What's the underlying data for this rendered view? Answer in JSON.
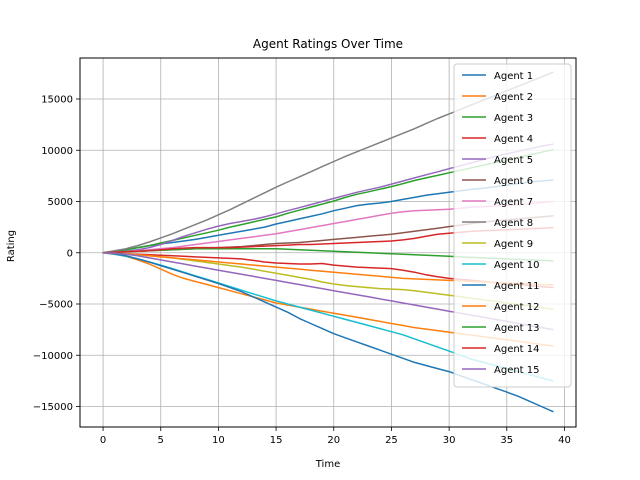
{
  "chart_data": {
    "type": "line",
    "title": "Agent Ratings Over Time",
    "xlabel": "Time",
    "ylabel": "Rating",
    "xlim": [
      -2,
      41
    ],
    "ylim": [
      -17000,
      19000
    ],
    "x_ticks": [
      0,
      5,
      10,
      15,
      20,
      25,
      30,
      35,
      40
    ],
    "y_ticks": [
      -15000,
      -10000,
      -5000,
      0,
      5000,
      10000,
      15000
    ],
    "x_tick_labels": [
      "0",
      "5",
      "10",
      "15",
      "20",
      "25",
      "30",
      "35",
      "40"
    ],
    "y_tick_labels": [
      "−15000",
      "−10000",
      "−5000",
      "0",
      "5000",
      "10000",
      "15000"
    ],
    "grid": true,
    "legend_position": "upper right",
    "x": [
      0,
      1,
      2,
      3,
      4,
      5,
      6,
      7,
      8,
      9,
      10,
      11,
      12,
      13,
      14,
      15,
      16,
      17,
      18,
      19,
      20,
      21,
      22,
      23,
      24,
      25,
      26,
      27,
      28,
      29,
      30,
      31,
      32,
      33,
      34,
      35,
      36,
      37,
      38,
      39
    ],
    "series": [
      {
        "name": "Agent 1",
        "color": "#1f77b4",
        "values": [
          0,
          150,
          300,
          500,
          700,
          850,
          1000,
          1150,
          1300,
          1500,
          1700,
          1900,
          2100,
          2300,
          2500,
          2800,
          3050,
          3300,
          3550,
          3800,
          4100,
          4350,
          4600,
          4750,
          4850,
          5000,
          5200,
          5400,
          5600,
          5750,
          5900,
          6050,
          6200,
          6300,
          6450,
          6600,
          6750,
          6900,
          7000,
          7100
        ]
      },
      {
        "name": "Agent 2",
        "color": "#ff7f0e",
        "values": [
          0,
          -150,
          -350,
          -700,
          -1100,
          -1600,
          -2100,
          -2500,
          -2800,
          -3100,
          -3400,
          -3700,
          -4000,
          -4300,
          -4600,
          -4900,
          -5100,
          -5300,
          -5500,
          -5700,
          -5900,
          -6100,
          -6300,
          -6500,
          -6700,
          -6900,
          -7100,
          -7300,
          -7450,
          -7600,
          -7750,
          -7900,
          -8050,
          -8200,
          -8350,
          -8500,
          -8650,
          -8800,
          -8950,
          -9100
        ]
      },
      {
        "name": "Agent 3",
        "color": "#2ca02c",
        "values": [
          0,
          150,
          300,
          500,
          700,
          950,
          1200,
          1450,
          1700,
          1950,
          2200,
          2500,
          2750,
          3000,
          3250,
          3500,
          3850,
          4150,
          4450,
          4750,
          5050,
          5400,
          5700,
          5950,
          6200,
          6450,
          6750,
          7050,
          7300,
          7550,
          7800,
          8050,
          8300,
          8550,
          8800,
          9050,
          9300,
          9550,
          9800,
          10050
        ]
      },
      {
        "name": "Agent 4",
        "color": "#d62728",
        "values": [
          0,
          -50,
          -100,
          -150,
          -200,
          -250,
          -300,
          -350,
          -400,
          -450,
          -500,
          -550,
          -600,
          -750,
          -900,
          -1000,
          -1050,
          -1100,
          -1100,
          -1050,
          -1200,
          -1300,
          -1400,
          -1450,
          -1500,
          -1550,
          -1700,
          -1900,
          -2150,
          -2350,
          -2500,
          -2600,
          -2700,
          -2800,
          -2900,
          -3000,
          -3100,
          -3200,
          -3300,
          -3400
        ]
      },
      {
        "name": "Agent 5",
        "color": "#9467bd",
        "values": [
          0,
          50,
          150,
          300,
          500,
          800,
          1200,
          1600,
          1950,
          2300,
          2600,
          2850,
          3050,
          3250,
          3500,
          3800,
          4100,
          4400,
          4700,
          5000,
          5300,
          5600,
          5900,
          6150,
          6400,
          6700,
          7000,
          7300,
          7600,
          7900,
          8200,
          8500,
          8800,
          9100,
          9400,
          9650,
          9900,
          10150,
          10400,
          10600
        ]
      },
      {
        "name": "Agent 6",
        "color": "#8c564b",
        "values": [
          0,
          50,
          100,
          150,
          200,
          250,
          300,
          350,
          400,
          450,
          500,
          550,
          600,
          700,
          800,
          900,
          950,
          1000,
          1100,
          1200,
          1300,
          1400,
          1500,
          1600,
          1700,
          1800,
          1950,
          2100,
          2250,
          2400,
          2550,
          2700,
          2850,
          3000,
          3100,
          3200,
          3300,
          3400,
          3500,
          3600
        ]
      },
      {
        "name": "Agent 7",
        "color": "#e377c2",
        "values": [
          0,
          50,
          100,
          200,
          300,
          400,
          500,
          650,
          800,
          950,
          1100,
          1250,
          1400,
          1550,
          1700,
          1850,
          2050,
          2250,
          2450,
          2650,
          2850,
          3050,
          3250,
          3450,
          3650,
          3850,
          4000,
          4100,
          4150,
          4200,
          4250,
          4350,
          4450,
          4500,
          4550,
          4600,
          4700,
          4800,
          4900,
          5000
        ]
      },
      {
        "name": "Agent 8",
        "color": "#7f7f7f",
        "values": [
          0,
          200,
          400,
          700,
          1050,
          1450,
          1850,
          2300,
          2750,
          3200,
          3700,
          4200,
          4750,
          5300,
          5850,
          6400,
          6900,
          7400,
          7900,
          8400,
          8900,
          9400,
          9850,
          10300,
          10750,
          11200,
          11650,
          12100,
          12600,
          13100,
          13550,
          14000,
          14450,
          14900,
          15350,
          15800,
          16250,
          16700,
          17150,
          17600
        ]
      },
      {
        "name": "Agent 9",
        "color": "#bcbd22",
        "values": [
          0,
          -50,
          -100,
          -200,
          -300,
          -400,
          -500,
          -650,
          -800,
          -950,
          -1100,
          -1250,
          -1400,
          -1600,
          -1800,
          -2000,
          -2200,
          -2400,
          -2600,
          -2850,
          -3050,
          -3200,
          -3300,
          -3400,
          -3500,
          -3550,
          -3600,
          -3700,
          -3850,
          -4000,
          -4150,
          -4300,
          -4450,
          -4600,
          -4750,
          -4900,
          -5050,
          -5200,
          -5350,
          -5500
        ]
      },
      {
        "name": "Agent 10",
        "color": "#17becf",
        "values": [
          0,
          -150,
          -350,
          -600,
          -900,
          -1200,
          -1550,
          -1900,
          -2250,
          -2600,
          -2950,
          -3300,
          -3650,
          -4000,
          -4350,
          -4700,
          -5000,
          -5300,
          -5600,
          -5900,
          -6200,
          -6500,
          -6800,
          -7100,
          -7400,
          -7700,
          -8000,
          -8400,
          -8800,
          -9200,
          -9600,
          -10000,
          -10400,
          -10700,
          -11000,
          -11300,
          -11600,
          -11900,
          -12200,
          -12500
        ]
      },
      {
        "name": "Agent 11",
        "color": "#1f77b4",
        "values": [
          0,
          -100,
          -300,
          -600,
          -900,
          -1250,
          -1600,
          -1950,
          -2300,
          -2650,
          -3000,
          -3400,
          -3800,
          -4300,
          -4800,
          -5300,
          -5800,
          -6400,
          -6900,
          -7400,
          -7900,
          -8300,
          -8700,
          -9100,
          -9500,
          -9900,
          -10300,
          -10700,
          -11000,
          -11300,
          -11600,
          -12000,
          -12400,
          -12800,
          -13200,
          -13600,
          -14000,
          -14500,
          -15000,
          -15500
        ]
      },
      {
        "name": "Agent 12",
        "color": "#ff7f0e",
        "values": [
          0,
          -50,
          -100,
          -200,
          -300,
          -400,
          -500,
          -600,
          -700,
          -800,
          -900,
          -1000,
          -1100,
          -1200,
          -1300,
          -1400,
          -1500,
          -1600,
          -1700,
          -1800,
          -1900,
          -2000,
          -2100,
          -2200,
          -2300,
          -2400,
          -2500,
          -2550,
          -2600,
          -2650,
          -2700,
          -2750,
          -2800,
          -2850,
          -2900,
          -2950,
          -3000,
          -3050,
          -3100,
          -3150
        ]
      },
      {
        "name": "Agent 13",
        "color": "#2ca02c",
        "values": [
          0,
          50,
          100,
          150,
          200,
          250,
          300,
          350,
          400,
          400,
          400,
          400,
          400,
          400,
          400,
          400,
          350,
          300,
          250,
          200,
          150,
          100,
          50,
          0,
          -50,
          -100,
          -150,
          -200,
          -250,
          -300,
          -350,
          -400,
          -450,
          -500,
          -550,
          -600,
          -650,
          -700,
          -750,
          -800
        ]
      },
      {
        "name": "Agent 14",
        "color": "#d62728",
        "values": [
          0,
          50,
          100,
          150,
          200,
          300,
          400,
          450,
          500,
          500,
          500,
          500,
          550,
          600,
          650,
          700,
          750,
          800,
          800,
          850,
          900,
          950,
          1000,
          1050,
          1100,
          1150,
          1250,
          1400,
          1600,
          1800,
          1900,
          2000,
          2100,
          2150,
          2200,
          2250,
          2300,
          2350,
          2400,
          2450
        ]
      },
      {
        "name": "Agent 15",
        "color": "#9467bd",
        "values": [
          0,
          -50,
          -150,
          -300,
          -500,
          -700,
          -900,
          -1100,
          -1300,
          -1500,
          -1700,
          -1900,
          -2100,
          -2300,
          -2500,
          -2700,
          -2900,
          -3100,
          -3300,
          -3500,
          -3700,
          -3900,
          -4100,
          -4300,
          -4500,
          -4700,
          -4900,
          -5100,
          -5300,
          -5500,
          -5700,
          -5900,
          -6100,
          -6300,
          -6500,
          -6700,
          -6900,
          -7100,
          -7300,
          -7500
        ]
      }
    ]
  }
}
